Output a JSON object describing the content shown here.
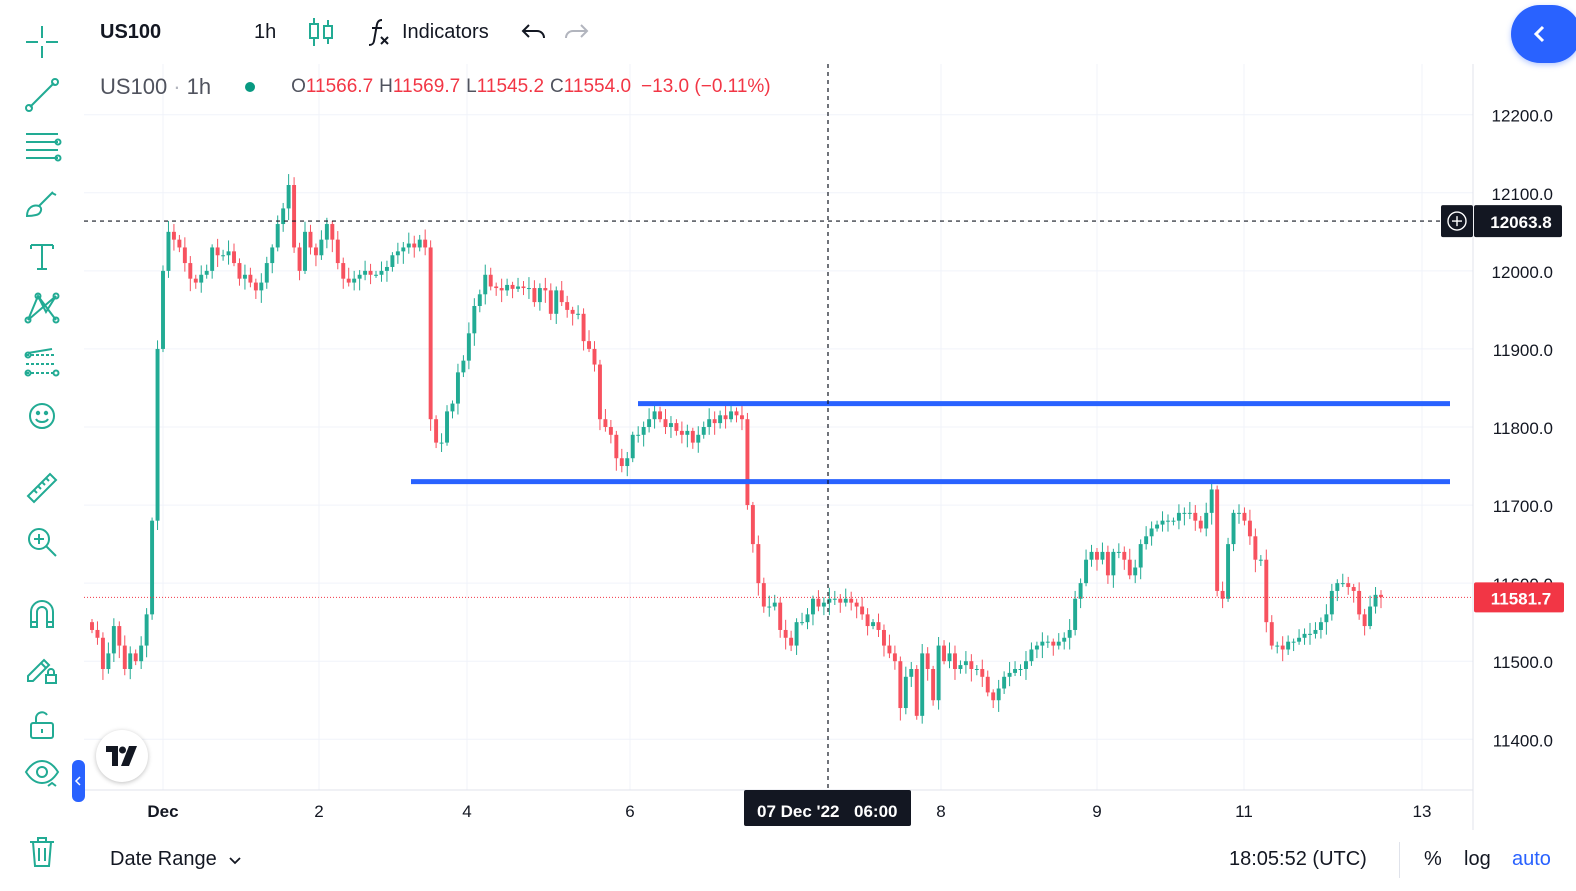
{
  "toolbar": {
    "symbol": "US100",
    "interval": "1h",
    "indicators_label": "Indicators"
  },
  "legend": {
    "symbol": "US100",
    "interval": "1h",
    "separator": "·",
    "open_label": "O",
    "open": "11566.7",
    "high_label": "H",
    "high": "11569.7",
    "low_label": "L",
    "low": "11545.2",
    "close_label": "C",
    "close": "11554.0",
    "change": "−13.0 (−0.11%)"
  },
  "price_axis": {
    "ticks": [
      "12200.0",
      "12100.0",
      "12000.0",
      "11900.0",
      "11800.0",
      "11700.0",
      "11600.0",
      "11500.0",
      "11400.0"
    ],
    "crosshair_price": "12063.8",
    "last_price": "11581.7"
  },
  "time_axis": {
    "ticks": [
      "Dec",
      "2",
      "4",
      "6",
      "8",
      "9",
      "11",
      "13"
    ],
    "crosshair_label": "07 Dec '22",
    "crosshair_time": "06:00"
  },
  "bottom": {
    "date_range": "Date Range",
    "clock": "18:05:52 (UTC)",
    "percent": "%",
    "log": "log",
    "auto": "auto"
  },
  "colors": {
    "up": "#22ab94",
    "down": "#f7525f",
    "drawing_line": "#2962ff",
    "last_price_bg": "#f23645",
    "crosshair_label_bg": "#131722"
  },
  "icons": {
    "tools": [
      "crosshair-icon",
      "trend-line-icon",
      "fib-retracement-icon",
      "brush-icon",
      "text-icon",
      "pattern-icon",
      "prediction-icon",
      "emoji-icon",
      "ruler-icon",
      "zoom-in-icon",
      "magnet-icon",
      "lock-drawing-icon",
      "unlock-icon",
      "eye-icon",
      "trash-icon"
    ]
  },
  "chart_data": {
    "type": "candlestick",
    "symbol": "US100",
    "interval": "1h",
    "ylim": [
      11335,
      12265
    ],
    "y_ticks": [
      12200,
      12100,
      12000,
      11900,
      11800,
      11700,
      11600,
      11500,
      11400
    ],
    "x_ticks": [
      "Dec",
      "2",
      "4",
      "6",
      "8",
      "9",
      "11",
      "13"
    ],
    "grid": true,
    "horizontal_lines": [
      {
        "price": 11830,
        "color": "#2962ff"
      },
      {
        "price": 11730,
        "color": "#2962ff"
      }
    ],
    "crosshair": {
      "price": 12063.8,
      "time": "07 Dec '22 06:00"
    },
    "last_price": 11581.7,
    "closes": [
      11540,
      11530,
      11490,
      11510,
      11545,
      11520,
      11490,
      11510,
      11500,
      11520,
      11560,
      11680,
      11900,
      12000,
      12050,
      12040,
      12030,
      12010,
      11990,
      11985,
      11995,
      12000,
      12030,
      12020,
      12020,
      12025,
      12010,
      11990,
      11995,
      11985,
      11975,
      11985,
      12010,
      12030,
      12060,
      12080,
      12110,
      12030,
      12000,
      12050,
      12030,
      12020,
      12040,
      12060,
      12040,
      12010,
      11990,
      11985,
      11990,
      11995,
      12000,
      11995,
      11995,
      12000,
      12005,
      12020,
      12025,
      12030,
      12035,
      12030,
      12040,
      12030,
      11810,
      11780,
      11780,
      11820,
      11830,
      11870,
      11885,
      11920,
      11955,
      11970,
      11995,
      11980,
      11978,
      11975,
      11982,
      11977,
      11980,
      11978,
      11978,
      11960,
      11978,
      11975,
      11945,
      11975,
      11960,
      11950,
      11945,
      11945,
      11910,
      11900,
      11880,
      11810,
      11800,
      11790,
      11760,
      11750,
      11760,
      11790,
      11790,
      11800,
      11810,
      11820,
      11810,
      11800,
      11805,
      11795,
      11790,
      11795,
      11780,
      11790,
      11800,
      11810,
      11805,
      11815,
      11810,
      11820,
      11815,
      11810,
      11700,
      11650,
      11600,
      11570,
      11570,
      11575,
      11540,
      11530,
      11520,
      11550,
      11550,
      11560,
      11580,
      11570,
      11575,
      11580,
      11580,
      11575,
      11580,
      11575,
      11570,
      11560,
      11545,
      11550,
      11540,
      11520,
      11510,
      11500,
      11440,
      11480,
      11490,
      11430,
      11510,
      11490,
      11450,
      11520,
      11500,
      11510,
      11490,
      11495,
      11500,
      11490,
      11490,
      11480,
      11460,
      11450,
      11465,
      11480,
      11485,
      11490,
      11490,
      11500,
      11515,
      11520,
      11525,
      11525,
      11520,
      11525,
      11530,
      11540,
      11580,
      11600,
      11630,
      11640,
      11630,
      11640,
      11610,
      11640,
      11640,
      11630,
      11610,
      11620,
      11650,
      11660,
      11670,
      11675,
      11680,
      11680,
      11680,
      11690,
      11690,
      11690,
      11680,
      11670,
      11690,
      11720,
      11590,
      11580,
      11650,
      11690,
      11690,
      11680,
      11660,
      11630,
      11630,
      11550,
      11520,
      11520,
      11515,
      11525,
      11525,
      11530,
      11535,
      11535,
      11540,
      11550,
      11560,
      11590,
      11600,
      11600,
      11595,
      11590,
      11560,
      11545,
      11570,
      11585,
      11582
    ]
  }
}
